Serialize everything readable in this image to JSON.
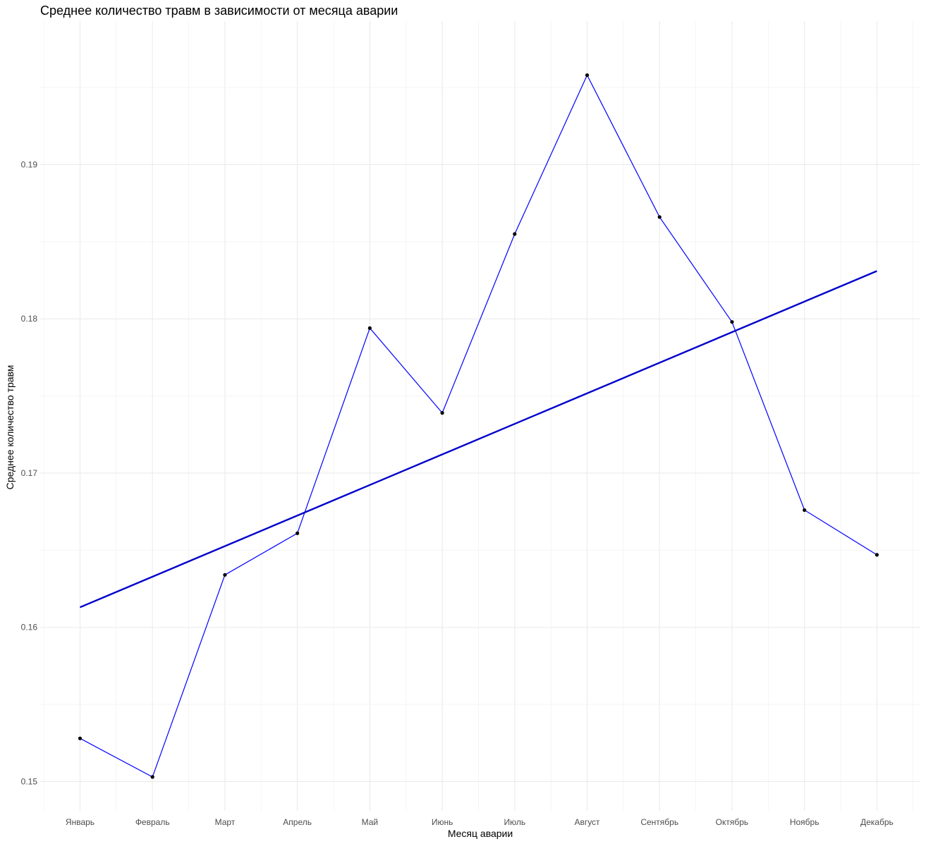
{
  "chart_data": {
    "type": "line",
    "title": "Среднее количество травм в зависимости от месяца аварии",
    "xlabel": "Месяц аварии",
    "ylabel": "Среднее количество травм",
    "categories": [
      "Январь",
      "Февраль",
      "Март",
      "Апрель",
      "Май",
      "Июнь",
      "Июль",
      "Август",
      "Сентябрь",
      "Октябрь",
      "Ноябрь",
      "Декабрь"
    ],
    "series": [
      {
        "values": [
          0.1528,
          0.1503,
          0.1634,
          0.1661,
          0.1794,
          0.1739,
          0.1855,
          0.1958,
          0.1866,
          0.1798,
          0.1676,
          0.1647
        ]
      }
    ],
    "trend": {
      "start": 0.1613,
      "end": 0.1831
    },
    "yticks": [
      0.15,
      0.16,
      0.17,
      0.18,
      0.19
    ],
    "ylim": [
      0.1481,
      0.1993
    ],
    "grid": true,
    "colors": {
      "line": "#0000ff",
      "trend": "#0000cc",
      "point": "#000000"
    }
  }
}
